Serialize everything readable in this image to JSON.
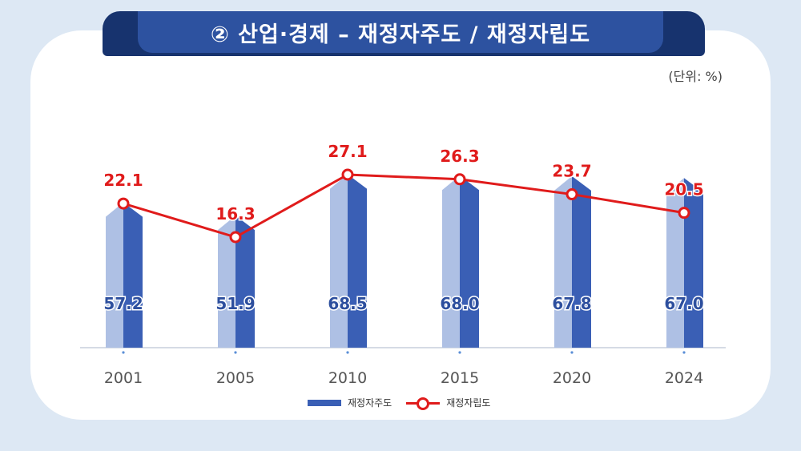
{
  "title": "② 산업·경제 – 재정자주도 / 재정자립도",
  "unit_label": "(단위: %)",
  "colors": {
    "bar_dark": "#3a5fb5",
    "bar_light": "#aec0e4",
    "line": "#e01b1b",
    "title_bg": "#2d52a0"
  },
  "chart_data": {
    "type": "bar",
    "categories": [
      "2001",
      "2005",
      "2010",
      "2015",
      "2020",
      "2024"
    ],
    "series": [
      {
        "name": "재정자주도",
        "type": "bar",
        "values": [
          57.2,
          51.9,
          68.5,
          68.0,
          67.8,
          67.0
        ]
      },
      {
        "name": "재정자립도",
        "type": "line",
        "values": [
          22.1,
          16.3,
          27.1,
          26.3,
          23.7,
          20.5
        ]
      }
    ],
    "bar_labels": [
      "57.2",
      "51.9",
      "68.5",
      "68.0",
      "67.8",
      "67.0"
    ],
    "line_labels": [
      "22.1",
      "16.3",
      "27.1",
      "26.3",
      "23.7",
      "20.5"
    ],
    "legend": [
      "재정자주도",
      "재정자립도"
    ],
    "legend_position": "bottom",
    "grid": false
  }
}
